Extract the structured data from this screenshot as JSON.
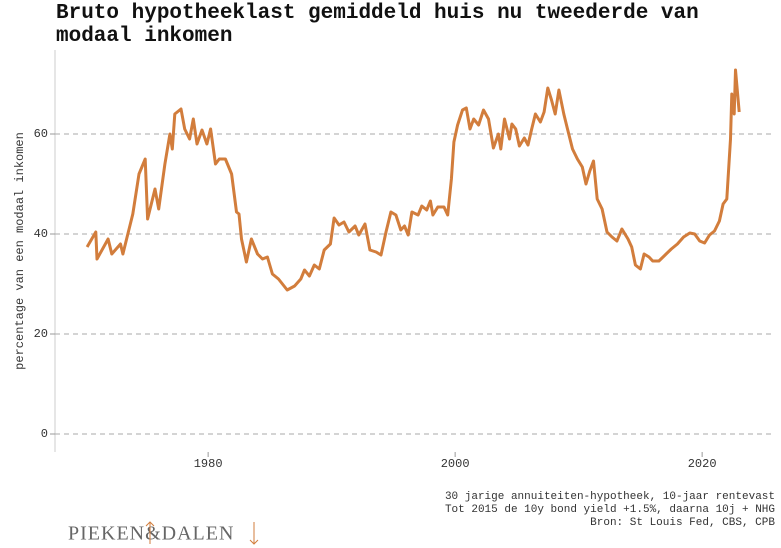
{
  "chart_data": {
    "type": "line",
    "title": "Bruto hypotheeklast gemiddeld huis nu tweederde van modaal inkomen",
    "y_label": "percentage van een modaal inkomen",
    "color": "#d27d3c",
    "x": [
      1970.2,
      1970.9,
      1971.0,
      1971.9,
      1972.2,
      1972.9,
      1973.1,
      1973.9,
      1974.4,
      1974.9,
      1975.1,
      1975.7,
      1976.0,
      1976.5,
      1976.9,
      1977.1,
      1977.3,
      1977.8,
      1978.1,
      1978.5,
      1978.8,
      1979.1,
      1979.5,
      1979.9,
      1980.2,
      1980.6,
      1980.9,
      1981.4,
      1981.9,
      1982.3,
      1982.5,
      1982.7,
      1983.1,
      1983.5,
      1984.0,
      1984.4,
      1984.8,
      1985.2,
      1985.7,
      1986.4,
      1987.0,
      1987.5,
      1987.8,
      1988.2,
      1988.6,
      1989.0,
      1989.4,
      1989.9,
      1990.2,
      1990.6,
      1991.0,
      1991.4,
      1991.9,
      1992.2,
      1992.7,
      1993.1,
      1993.6,
      1994.0,
      1994.4,
      1994.8,
      1995.2,
      1995.6,
      1995.9,
      1996.2,
      1996.5,
      1997.0,
      1997.3,
      1997.7,
      1998.0,
      1998.2,
      1998.6,
      1999.1,
      1999.4,
      1999.7,
      1999.9,
      2000.2,
      2000.6,
      2000.9,
      2001.2,
      2001.5,
      2001.9,
      2002.3,
      2002.7,
      2003.1,
      2003.5,
      2003.7,
      2004.0,
      2004.4,
      2004.6,
      2004.9,
      2005.2,
      2005.6,
      2005.9,
      2006.2,
      2006.5,
      2006.9,
      2007.2,
      2007.5,
      2007.8,
      2008.1,
      2008.4,
      2008.8,
      2009.1,
      2009.5,
      2009.9,
      2010.3,
      2010.6,
      2010.9,
      2011.2,
      2011.5,
      2011.9,
      2012.3,
      2012.7,
      2013.1,
      2013.5,
      2014.0,
      2014.3,
      2014.6,
      2015.0,
      2015.3,
      2015.7,
      2016.0,
      2016.5,
      2017.0,
      2017.5,
      2018.0,
      2018.5,
      2019.0,
      2019.4,
      2019.8,
      2020.2,
      2020.6,
      2021.0,
      2021.4,
      2021.7,
      2022.0,
      2022.3,
      2022.4,
      2022.6,
      2022.7,
      2023.0
    ],
    "values": [
      37.4,
      40.4,
      35,
      39,
      36,
      38,
      36,
      44,
      52,
      55,
      43,
      49,
      45,
      54,
      60,
      57,
      64,
      65,
      61,
      59,
      63,
      58,
      60.8,
      58,
      61,
      54,
      55,
      55,
      52,
      44.4,
      44,
      39,
      34.4,
      39,
      36,
      35,
      35.4,
      32,
      31,
      28.8,
      29.6,
      31,
      32.8,
      31.6,
      33.8,
      33,
      36.8,
      38,
      43.2,
      41.8,
      42.4,
      40.4,
      41.6,
      39.8,
      42,
      36.8,
      36.4,
      35.8,
      40.4,
      44.4,
      43.8,
      40.8,
      41.6,
      39.8,
      44.4,
      43.8,
      45.6,
      44.8,
      46.6,
      43.8,
      45.4,
      45.4,
      43.8,
      51,
      58.4,
      61.8,
      64.8,
      65.2,
      61,
      63,
      61.8,
      64.8,
      63,
      57.2,
      60,
      57,
      63,
      59,
      62,
      61,
      57.6,
      59.2,
      57.8,
      61,
      64,
      62.4,
      64.4,
      69.2,
      66.8,
      64,
      68.8,
      64,
      61,
      57,
      55,
      53.4,
      50,
      52.6,
      54.6,
      47,
      45,
      40.4,
      39.4,
      38.6,
      41,
      39,
      37.4,
      33.8,
      33,
      36,
      35.4,
      34.6,
      34.6,
      35.8,
      37,
      38,
      39.4,
      40.2,
      40,
      38.6,
      38.2,
      39.8,
      40.6,
      42.6,
      46,
      47,
      59,
      68,
      64,
      72.8,
      64.4
    ],
    "xlim": [
      1967.6,
      2025.9
    ],
    "xticks": [
      1980,
      2000,
      2020
    ],
    "ylim": [
      -3.6,
      76.8
    ],
    "yticks": [
      0,
      20,
      40,
      60
    ],
    "grid": true
  },
  "footer": {
    "notes": [
      "30 jarige annuiteiten-hypotheek, 10-jaar rentevast",
      "Tot 2015 de 10y bond yield +1.5%, daarna 10j + NHG",
      "Bron: St Louis Fed, CBS, CPB"
    ],
    "logo": "PIEKEN&DALEN"
  }
}
